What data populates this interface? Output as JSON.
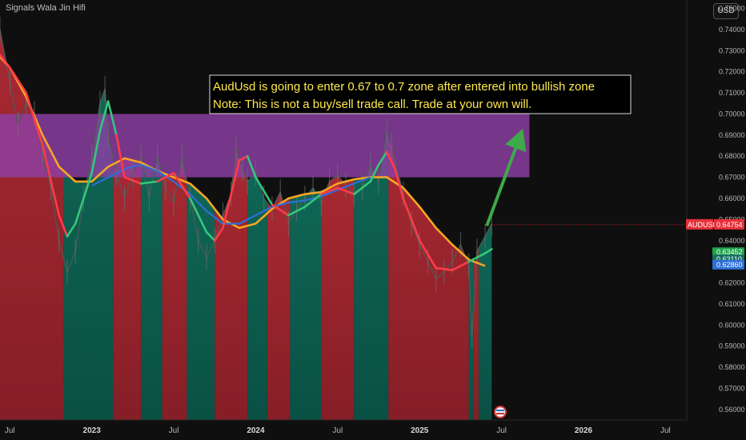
{
  "header": {
    "brand": "Signals Wala Jin Hifi",
    "currency": "USD"
  },
  "chart_data": {
    "type": "line",
    "symbol": "AUDUSD",
    "last_price": "0.64754",
    "y_ticks": [
      "0.75000",
      "0.74000",
      "0.73000",
      "0.72000",
      "0.71000",
      "0.70000",
      "0.69000",
      "0.68000",
      "0.67000",
      "0.66000",
      "0.65000",
      "0.64000",
      "0.63000",
      "0.62000",
      "0.61000",
      "0.60000",
      "0.59000",
      "0.58000",
      "0.57000",
      "0.56000"
    ],
    "ylim": [
      0.555,
      0.754
    ],
    "x_ticks": [
      {
        "label": "Jul",
        "x": 0.5,
        "bold": false
      },
      {
        "label": "2023",
        "x": 1.0,
        "bold": true
      },
      {
        "label": "Jul",
        "x": 1.5,
        "bold": false
      },
      {
        "label": "2024",
        "x": 2.0,
        "bold": true
      },
      {
        "label": "Jul",
        "x": 2.5,
        "bold": false
      },
      {
        "label": "2025",
        "x": 3.0,
        "bold": true
      },
      {
        "label": "Jul",
        "x": 3.5,
        "bold": false
      },
      {
        "label": "2026",
        "x": 4.0,
        "bold": true
      },
      {
        "label": "Jul",
        "x": 4.5,
        "bold": false
      }
    ],
    "xlim": [
      0.44,
      4.63
    ],
    "zone": {
      "y_low": 0.67,
      "y_high": 0.7,
      "x_start": 0.44,
      "x_end": 3.67,
      "color": "#8e3fa6"
    },
    "annotation": {
      "lines": [
        "AudUsd is going to enter 0.67 to 0.7 zone after entered into bullish zone",
        "Note: This is not a buy/sell trade call. Trade at your own will."
      ],
      "color": "#ffe94d"
    },
    "price_series": {
      "name": "AUDUSD",
      "x": [
        0.44,
        0.5,
        0.55,
        0.6,
        0.65,
        0.7,
        0.75,
        0.8,
        0.85,
        0.9,
        0.95,
        1.0,
        1.05,
        1.08,
        1.1,
        1.15,
        1.2,
        1.25,
        1.3,
        1.35,
        1.4,
        1.45,
        1.5,
        1.55,
        1.6,
        1.65,
        1.7,
        1.75,
        1.8,
        1.85,
        1.88,
        1.92,
        1.95,
        2.0,
        2.05,
        2.1,
        2.15,
        2.2,
        2.25,
        2.3,
        2.35,
        2.4,
        2.45,
        2.5,
        2.55,
        2.6,
        2.65,
        2.7,
        2.75,
        2.8,
        2.83,
        2.9,
        2.95,
        3.0,
        3.05,
        3.1,
        3.15,
        3.2,
        3.25,
        3.3,
        3.32,
        3.35,
        3.4,
        3.44
      ],
      "y": [
        0.74,
        0.715,
        0.695,
        0.705,
        0.7,
        0.682,
        0.665,
        0.64,
        0.625,
        0.635,
        0.66,
        0.68,
        0.705,
        0.712,
        0.69,
        0.672,
        0.66,
        0.672,
        0.68,
        0.66,
        0.68,
        0.665,
        0.658,
        0.68,
        0.66,
        0.64,
        0.632,
        0.64,
        0.652,
        0.662,
        0.684,
        0.674,
        0.668,
        0.672,
        0.66,
        0.655,
        0.663,
        0.648,
        0.655,
        0.66,
        0.665,
        0.658,
        0.668,
        0.671,
        0.666,
        0.662,
        0.665,
        0.676,
        0.668,
        0.692,
        0.685,
        0.662,
        0.648,
        0.638,
        0.63,
        0.622,
        0.625,
        0.63,
        0.638,
        0.628,
        0.595,
        0.635,
        0.642,
        0.648
      ]
    },
    "ma_slow": {
      "name": "",
      "color": "#f5a623",
      "x": [
        0.44,
        0.5,
        0.6,
        0.7,
        0.8,
        0.9,
        1.0,
        1.1,
        1.2,
        1.3,
        1.4,
        1.5,
        1.6,
        1.7,
        1.8,
        1.9,
        2.0,
        2.1,
        2.2,
        2.3,
        2.4,
        2.5,
        2.6,
        2.7,
        2.8,
        2.9,
        3.0,
        3.1,
        3.2,
        3.3,
        3.4
      ],
      "y": [
        0.727,
        0.722,
        0.708,
        0.69,
        0.675,
        0.668,
        0.668,
        0.675,
        0.679,
        0.677,
        0.673,
        0.67,
        0.667,
        0.66,
        0.65,
        0.646,
        0.648,
        0.655,
        0.66,
        0.662,
        0.663,
        0.667,
        0.669,
        0.67,
        0.67,
        0.665,
        0.656,
        0.646,
        0.638,
        0.631,
        0.628
      ]
    },
    "ma_fast": {
      "name": "",
      "x": [
        0.44,
        0.5,
        0.6,
        0.7,
        0.8,
        0.85,
        0.9,
        1.0,
        1.05,
        1.1,
        1.15,
        1.2,
        1.3,
        1.4,
        1.5,
        1.6,
        1.7,
        1.75,
        1.8,
        1.85,
        1.9,
        1.95,
        2.0,
        2.1,
        2.2,
        2.3,
        2.4,
        2.5,
        2.6,
        2.7,
        2.75,
        2.8,
        2.85,
        2.9,
        3.0,
        3.1,
        3.2,
        3.3,
        3.35,
        3.4,
        3.44
      ],
      "y": [
        0.728,
        0.722,
        0.71,
        0.685,
        0.652,
        0.642,
        0.648,
        0.672,
        0.692,
        0.706,
        0.69,
        0.67,
        0.667,
        0.668,
        0.672,
        0.66,
        0.644,
        0.64,
        0.646,
        0.662,
        0.678,
        0.68,
        0.67,
        0.657,
        0.652,
        0.656,
        0.662,
        0.665,
        0.662,
        0.668,
        0.676,
        0.682,
        0.674,
        0.66,
        0.64,
        0.627,
        0.626,
        0.63,
        0.632,
        0.634,
        0.636
      ]
    },
    "ma_mid": {
      "name": "",
      "color": "#2d6fd6",
      "x": [
        1.0,
        1.1,
        1.2,
        1.3,
        1.4,
        1.5,
        1.6,
        1.7,
        1.8,
        1.9,
        2.0,
        2.1,
        2.2,
        2.3,
        2.4,
        2.5,
        2.6,
        2.7
      ],
      "y": [
        0.666,
        0.67,
        0.674,
        0.676,
        0.673,
        0.668,
        0.662,
        0.654,
        0.648,
        0.648,
        0.652,
        0.656,
        0.658,
        0.659,
        0.661,
        0.664,
        0.667,
        0.67
      ]
    },
    "regimes": [
      {
        "x_start": 0.44,
        "x_end": 0.83,
        "state": "bearish"
      },
      {
        "x_start": 0.83,
        "x_end": 1.13,
        "state": "bullish"
      },
      {
        "x_start": 1.13,
        "x_end": 1.3,
        "state": "bearish"
      },
      {
        "x_start": 1.3,
        "x_end": 1.43,
        "state": "bullish"
      },
      {
        "x_start": 1.43,
        "x_end": 1.58,
        "state": "bearish"
      },
      {
        "x_start": 1.58,
        "x_end": 1.75,
        "state": "bullish"
      },
      {
        "x_start": 1.75,
        "x_end": 1.95,
        "state": "bearish"
      },
      {
        "x_start": 1.95,
        "x_end": 2.07,
        "state": "bullish"
      },
      {
        "x_start": 2.07,
        "x_end": 2.21,
        "state": "bearish"
      },
      {
        "x_start": 2.21,
        "x_end": 2.4,
        "state": "bullish"
      },
      {
        "x_start": 2.4,
        "x_end": 2.6,
        "state": "bearish"
      },
      {
        "x_start": 2.6,
        "x_end": 2.81,
        "state": "bullish"
      },
      {
        "x_start": 2.81,
        "x_end": 3.3,
        "state": "bearish"
      },
      {
        "x_start": 3.3,
        "x_end": 3.33,
        "state": "bullish"
      },
      {
        "x_start": 3.33,
        "x_end": 3.36,
        "state": "bearish"
      },
      {
        "x_start": 3.36,
        "x_end": 3.44,
        "state": "bullish"
      }
    ],
    "price_labels": [
      {
        "text": "AUDUSD",
        "value": "0.64754",
        "y": 0.64754,
        "color": "#e5303a",
        "kind": "symbol"
      },
      {
        "text": "0.63452",
        "y": 0.63452,
        "color": "#1fa34a"
      },
      {
        "text": "0.63110",
        "y": 0.6311,
        "color": "#14705f"
      },
      {
        "text": "0.62860",
        "y": 0.6286,
        "color": "#2d6fd6"
      }
    ],
    "arrow": {
      "from": [
        3.41,
        0.647
      ],
      "to": [
        3.63,
        0.693
      ],
      "color": "#3faa4a"
    },
    "grid": false,
    "legend": "none",
    "colors": {
      "bearish": "#a3262f",
      "bullish": "#0c5c4d",
      "price": "#4f5a55"
    }
  }
}
